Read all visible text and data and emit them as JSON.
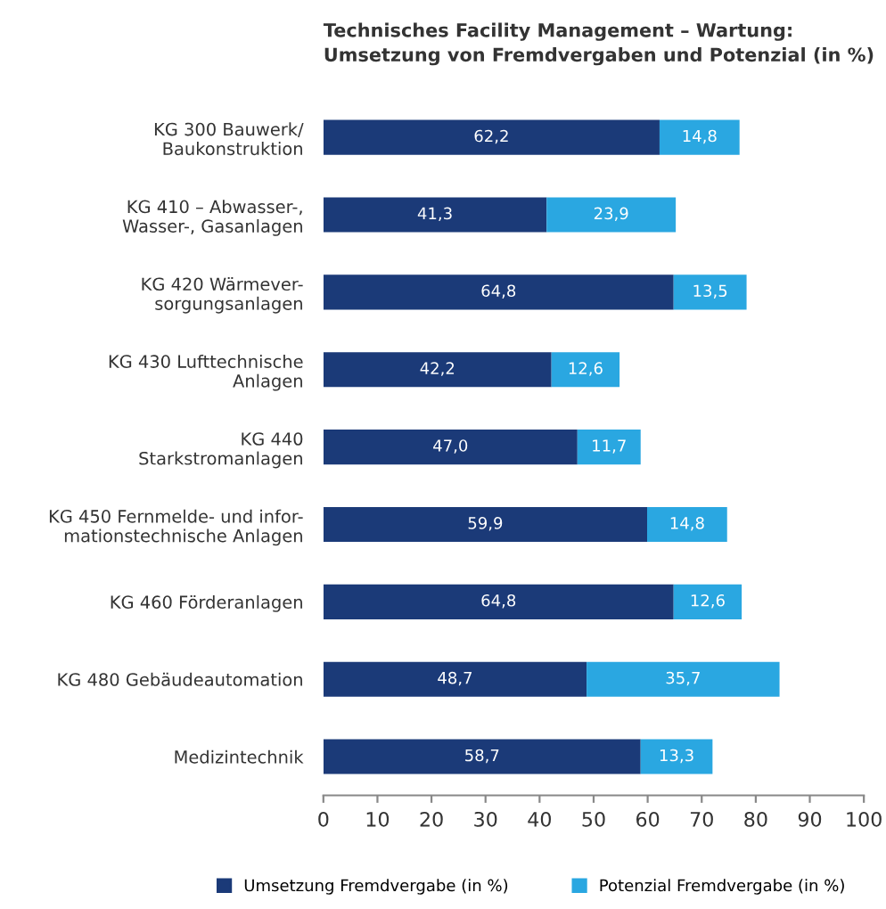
{
  "chart_data": {
    "type": "bar",
    "orientation": "horizontal",
    "stacked": true,
    "title": "Technisches Facility Management – Wartung:",
    "subtitle": "Umsetzung von Fremdvergaben und Potenzial (in %)",
    "categories": [
      "KG 300 Bauwerk/\nBaukonstruktion",
      "KG 410 – Abwasser-,\nWasser-, Gasanlagen",
      "KG 420 Wärmever-\nsorgungsanlagen",
      "KG 430 Lufttechnische\nAnlagen",
      "KG 440\nStarkstromanlagen",
      "KG 450 Fernmelde- und infor-\nmationstechnische Anlagen",
      "KG 460 Förderanlagen",
      "KG 480 Gebäudeautomation",
      "Medizintechnik"
    ],
    "series": [
      {
        "name": "Umsetzung Fremdvergabe (in %)",
        "color": "#1b3a78",
        "values": [
          62.2,
          41.3,
          64.8,
          42.2,
          47.0,
          59.9,
          64.8,
          48.7,
          58.7
        ],
        "value_labels": [
          "62,2",
          "41,3",
          "64,8",
          "42,2",
          "47,0",
          "59,9",
          "64,8",
          "48,7",
          "58,7"
        ]
      },
      {
        "name": "Potenzial Fremdvergabe (in %)",
        "color": "#2aa7e1",
        "values": [
          14.8,
          23.9,
          13.5,
          12.6,
          11.7,
          14.8,
          12.6,
          35.7,
          13.3
        ],
        "value_labels": [
          "14,8",
          "23,9",
          "13,5",
          "12,6",
          "11,7",
          "14,8",
          "12,6",
          "35,7",
          "13,3"
        ]
      }
    ],
    "xlim": [
      0,
      100
    ],
    "xticks": [
      0,
      10,
      20,
      30,
      40,
      50,
      60,
      70,
      80,
      90,
      100
    ],
    "grid": false,
    "legend": "bottom"
  }
}
